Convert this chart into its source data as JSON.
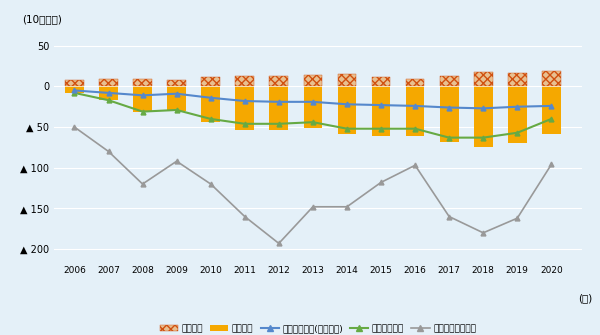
{
  "years": [
    2006,
    2007,
    2008,
    2009,
    2010,
    2011,
    2012,
    2013,
    2014,
    2015,
    2016,
    2017,
    2018,
    2019,
    2020
  ],
  "exports_to_china": [
    8,
    9,
    9,
    8,
    11,
    13,
    13,
    14,
    15,
    11,
    9,
    13,
    18,
    17,
    19
  ],
  "imports_from_china": [
    8,
    17,
    32,
    30,
    44,
    54,
    54,
    51,
    59,
    61,
    61,
    68,
    74,
    70,
    59
  ],
  "trade_balance_elec": [
    -5,
    -8,
    -11,
    -9,
    -14,
    -18,
    -19,
    -19,
    -22,
    -23,
    -24,
    -26,
    -27,
    -25,
    -24
  ],
  "trade_balance_china": [
    -8,
    -17,
    -31,
    -29,
    -40,
    -46,
    -46,
    -44,
    -52,
    -52,
    -52,
    -63,
    -63,
    -57,
    -40
  ],
  "india_trade_balance": [
    -50,
    -80,
    -120,
    -92,
    -120,
    -160,
    -193,
    -148,
    -148,
    -118,
    -97,
    -160,
    -180,
    -162,
    -96
  ],
  "bar_color_import": "#F5A800",
  "bar_color_export_fill": "#E8C090",
  "bar_color_export_hatch": "#D05010",
  "line_color_elec": "#5588CC",
  "line_color_china": "#66AA44",
  "line_color_india": "#999999",
  "bg_color": "#E4F0F8",
  "ylabel": "(10億ドル)",
  "xlabel": "(年)",
  "ylim_min": -215,
  "ylim_max": 65,
  "yticks": [
    50,
    0,
    -50,
    -100,
    -150,
    -200
  ],
  "ytick_labels": [
    "50",
    "0",
    "▲ 50",
    "▲ 100",
    "▲ 150",
    "▲ 200"
  ],
  "legend_labels": [
    "対中輸出",
    "対中輸入",
    "対中貳易収支(電気機器)",
    "対中貳易収支",
    "インドの貳易収支"
  ]
}
